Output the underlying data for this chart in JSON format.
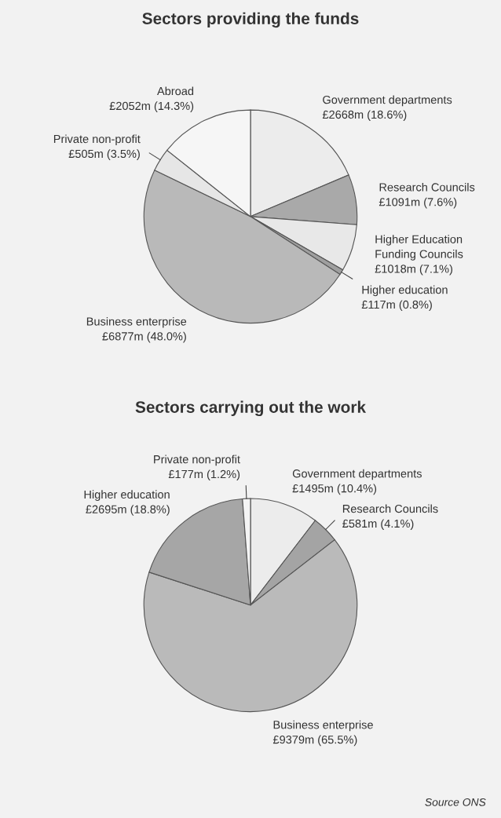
{
  "chart_data": [
    {
      "type": "pie",
      "title": "Sectors providing the funds",
      "categories": [
        "Government departments",
        "Research Councils",
        "Higher Education\nFunding Councils",
        "Higher education",
        "Business enterprise",
        "Private non-profit",
        "Abroad"
      ],
      "values": [
        18.6,
        7.6,
        7.1,
        0.8,
        48.0,
        3.5,
        14.3
      ],
      "value_labels": [
        "£2668m (18.6%)",
        "£1091m (7.6%)",
        "£1018m (7.1%)",
        "£117m (0.8%)",
        "£6877m (48.0%)",
        "£505m (3.5%)",
        "£2052m (14.3%)"
      ],
      "colors": [
        "#ececec",
        "#a9a9a9",
        "#e8e8e8",
        "#9f9f9f",
        "#b9b9b9",
        "#e6e6e6",
        "#f6f6f6"
      ]
    },
    {
      "type": "pie",
      "title": "Sectors carrying out the work",
      "categories": [
        "Government departments",
        "Research Councils",
        "Business enterprise",
        "Higher education",
        "Private non-profit"
      ],
      "values": [
        10.4,
        4.1,
        65.5,
        18.8,
        1.2
      ],
      "value_labels": [
        "£1495m (10.4%)",
        "£581m (4.1%)",
        "£9379m (65.5%)",
        "£2695m (18.8%)",
        "£177m (1.2%)"
      ],
      "colors": [
        "#ececec",
        "#a4a4a4",
        "#bababa",
        "#a6a6a6",
        "#f4f4f4"
      ],
      "annotations": [
        "Source ONS"
      ]
    }
  ]
}
